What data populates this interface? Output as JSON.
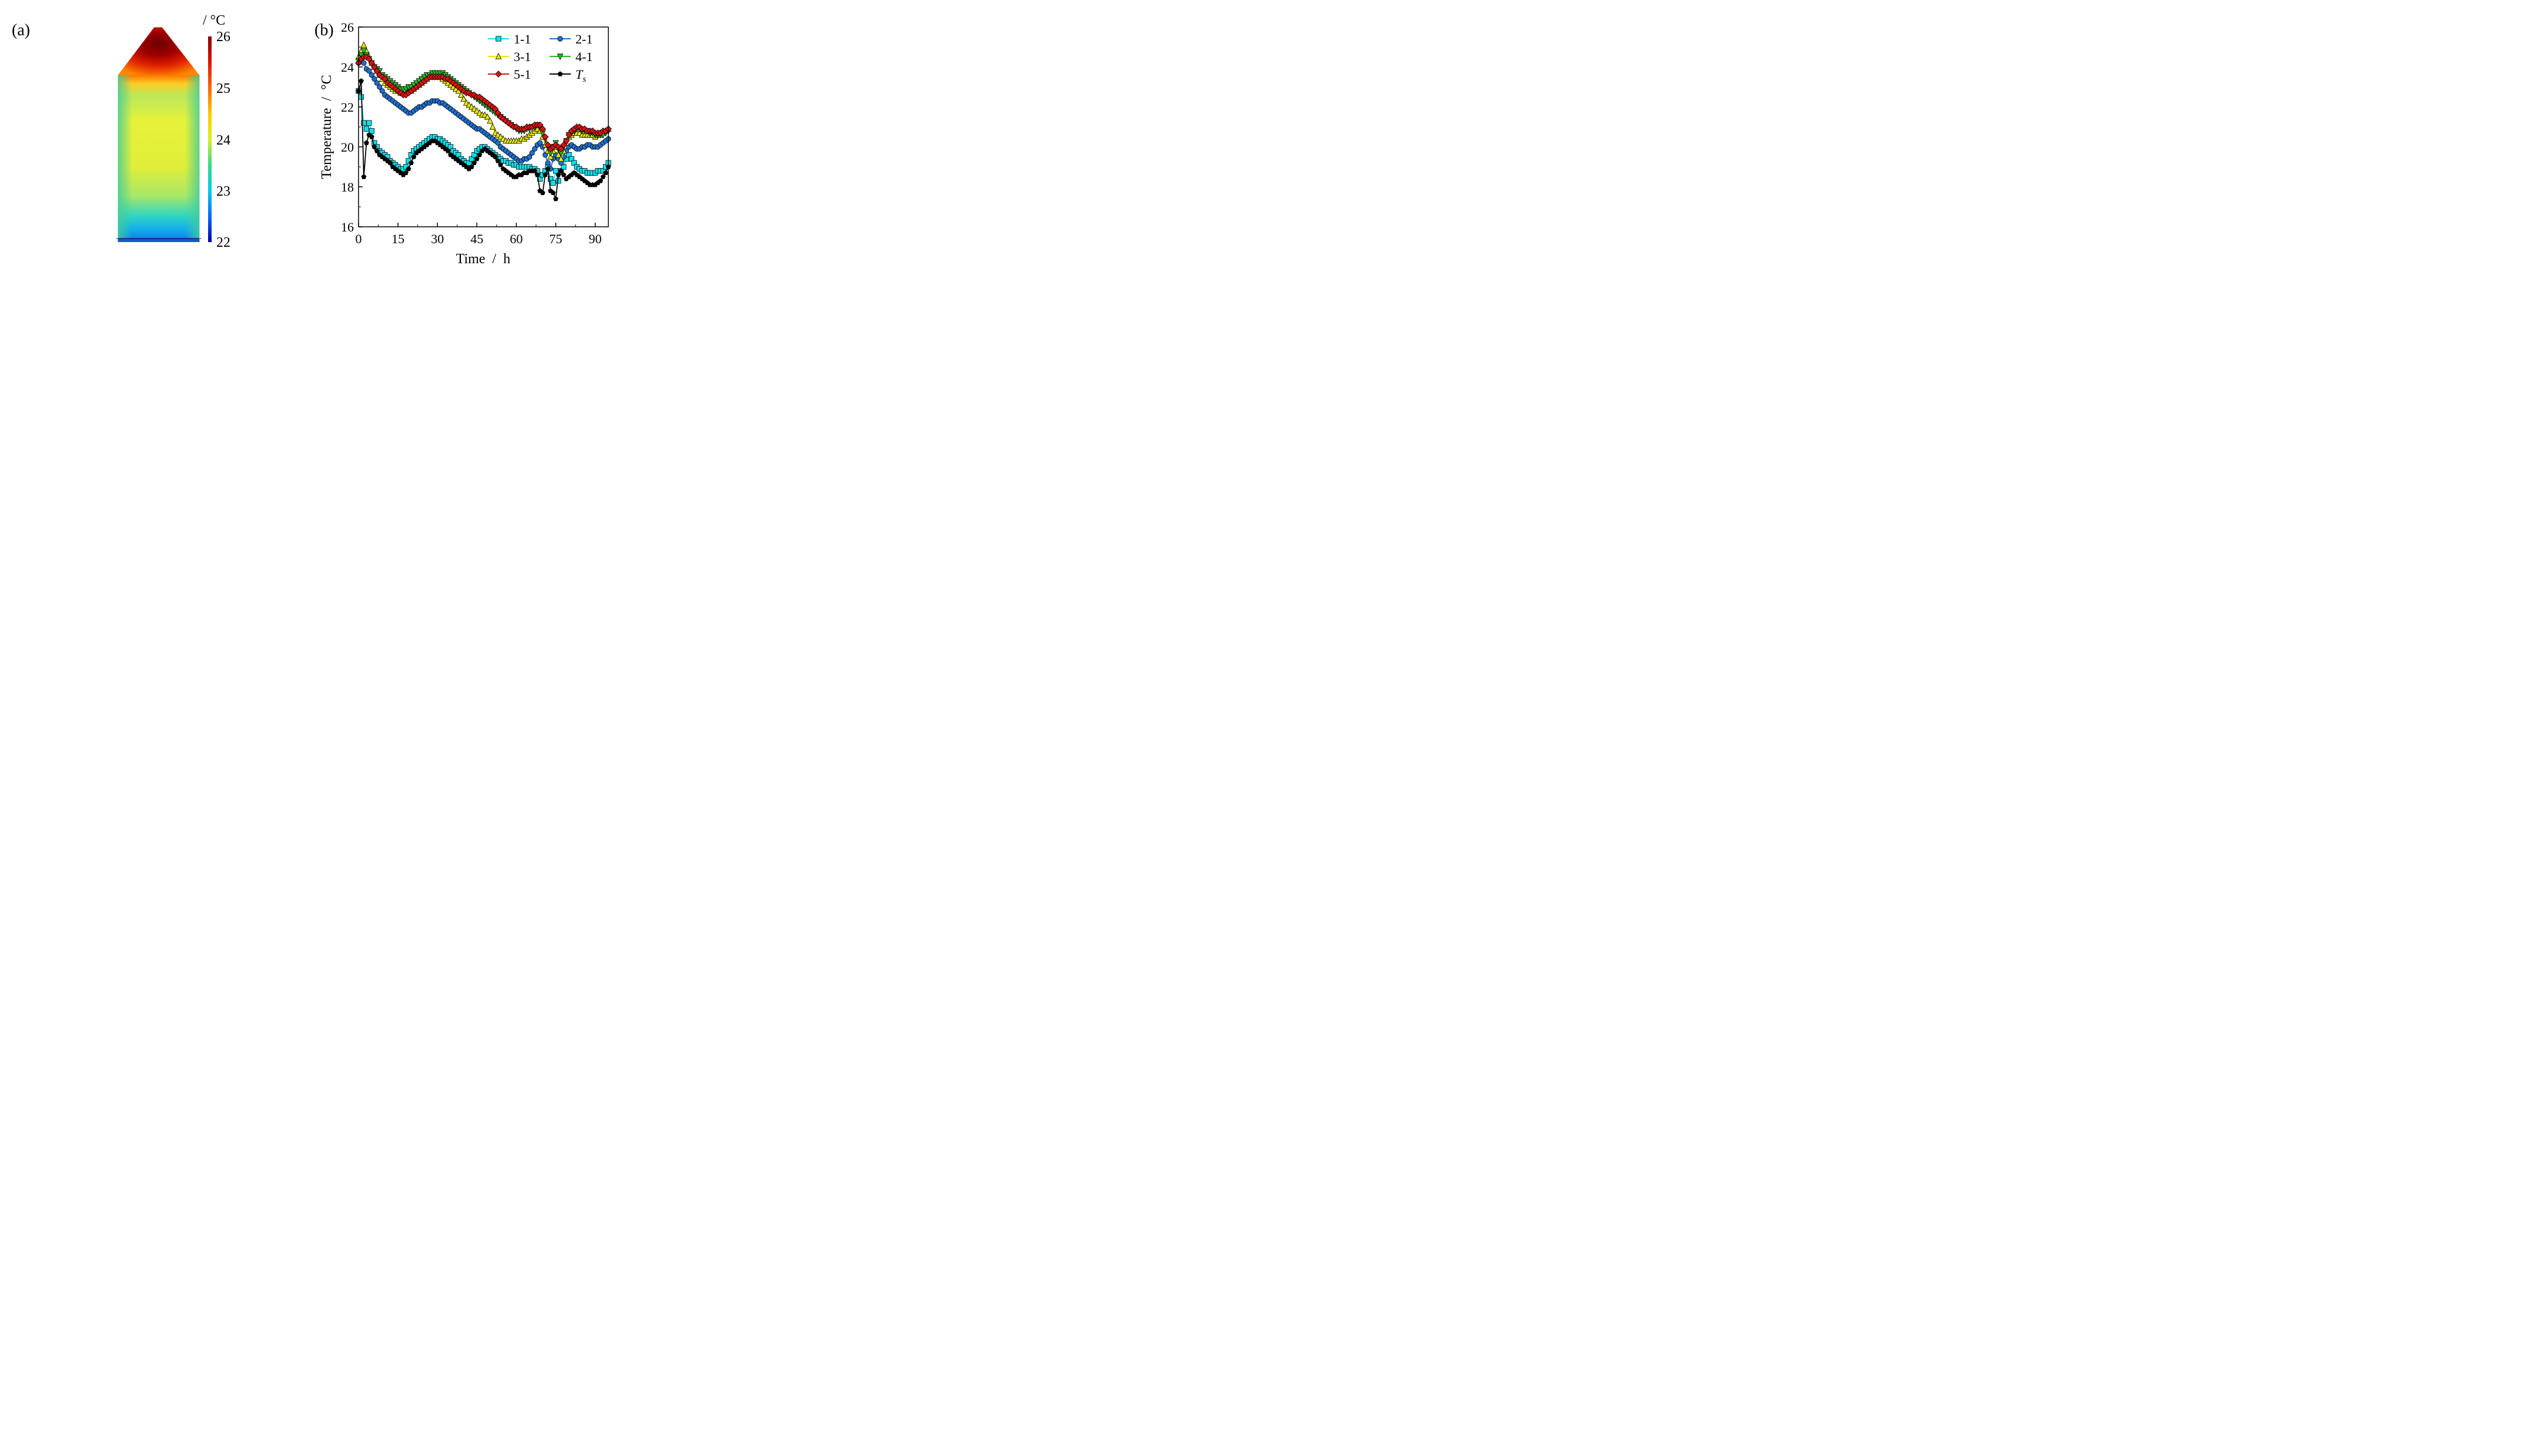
{
  "figure": {
    "panel_a_label": "(a)",
    "panel_b_label": "(b)"
  },
  "colorbar": {
    "unit": "/ °C",
    "ticks": [
      "26",
      "25",
      "24",
      "23",
      "22"
    ],
    "range": [
      22,
      26
    ],
    "colors": [
      "#0000aa",
      "#0066ff",
      "#00ccee",
      "#33dd88",
      "#ddee22",
      "#ffcc00",
      "#ff6600",
      "#dd1100",
      "#880000"
    ]
  },
  "contour": {
    "roof_color": "#8b0000",
    "body_top_color": "#ff7700",
    "body_mid_color": "#e6f23a",
    "body_low_color": "#55dd88",
    "body_bottom_color": "#1a8cff"
  },
  "chart_data": {
    "type": "line",
    "title": "",
    "xlabel": "Time  /  h",
    "ylabel": "Temperature  /  °C",
    "xlim": [
      0,
      95
    ],
    "ylim": [
      16,
      26
    ],
    "xticks": [
      "0",
      "15",
      "30",
      "45",
      "60",
      "75",
      "90"
    ],
    "yticks": [
      "16",
      "18",
      "20",
      "22",
      "24",
      "26"
    ],
    "legend_position": "top-right",
    "x": [
      0,
      1,
      2,
      3,
      4,
      5,
      6,
      7,
      8,
      9,
      10,
      11,
      12,
      13,
      14,
      15,
      16,
      17,
      18,
      19,
      20,
      21,
      22,
      23,
      24,
      25,
      26,
      27,
      28,
      29,
      30,
      31,
      32,
      33,
      34,
      35,
      36,
      37,
      38,
      39,
      40,
      41,
      42,
      43,
      44,
      45,
      46,
      47,
      48,
      49,
      50,
      51,
      52,
      53,
      54,
      55,
      56,
      57,
      58,
      59,
      60,
      61,
      62,
      63,
      64,
      65,
      66,
      67,
      68,
      69,
      70,
      71,
      72,
      73,
      74,
      75,
      76,
      77,
      78,
      79,
      80,
      81,
      82,
      83,
      84,
      85,
      86,
      87,
      88,
      89,
      90,
      91,
      92,
      93,
      94,
      95
    ],
    "series": [
      {
        "name": "1-1",
        "color": "#00e5ee",
        "marker": "square",
        "values": [
          22.8,
          22.5,
          21.2,
          20.9,
          21.2,
          20.8,
          20.2,
          20.0,
          19.8,
          19.7,
          19.6,
          19.5,
          19.3,
          19.2,
          19.1,
          19.0,
          18.9,
          18.9,
          19.0,
          19.3,
          19.6,
          19.8,
          19.9,
          20.0,
          20.1,
          20.2,
          20.3,
          20.4,
          20.5,
          20.5,
          20.4,
          20.4,
          20.3,
          20.2,
          20.1,
          20.0,
          19.8,
          19.7,
          19.6,
          19.4,
          19.3,
          19.2,
          19.2,
          19.4,
          19.6,
          19.8,
          19.9,
          20.0,
          20.0,
          19.9,
          19.8,
          19.7,
          19.6,
          19.5,
          19.4,
          19.3,
          19.3,
          19.2,
          19.2,
          19.1,
          19.1,
          19.0,
          19.0,
          19.0,
          19.0,
          19.0,
          18.9,
          18.9,
          18.8,
          18.4,
          18.6,
          18.8,
          19.0,
          18.4,
          18.2,
          18.8,
          18.3,
          18.8,
          19.0,
          19.4,
          19.6,
          19.4,
          19.2,
          19.0,
          18.9,
          18.8,
          18.8,
          18.7,
          18.7,
          18.7,
          18.7,
          18.8,
          18.8,
          18.8,
          19.0,
          19.2
        ]
      },
      {
        "name": "2-1",
        "color": "#1e6fd0",
        "marker": "circle",
        "values": [
          24.2,
          24.3,
          24.2,
          23.9,
          23.8,
          23.6,
          23.4,
          23.2,
          23.0,
          22.8,
          22.6,
          22.5,
          22.4,
          22.3,
          22.2,
          22.1,
          22.0,
          21.9,
          21.8,
          21.7,
          21.7,
          21.8,
          21.9,
          22.0,
          22.0,
          22.1,
          22.2,
          22.2,
          22.3,
          22.3,
          22.3,
          22.2,
          22.2,
          22.1,
          22.0,
          21.9,
          21.8,
          21.7,
          21.6,
          21.5,
          21.4,
          21.3,
          21.2,
          21.1,
          21.0,
          20.9,
          20.9,
          20.8,
          20.7,
          20.6,
          20.5,
          20.4,
          20.3,
          20.2,
          20.0,
          19.9,
          19.8,
          19.7,
          19.6,
          19.5,
          19.4,
          19.3,
          19.3,
          19.4,
          19.4,
          19.5,
          19.7,
          19.9,
          20.1,
          20.2,
          20.0,
          19.6,
          19.2,
          18.9,
          19.4,
          19.6,
          19.4,
          19.2,
          19.5,
          19.8,
          20.0,
          20.1,
          20.0,
          19.9,
          19.9,
          20.0,
          20.0,
          20.1,
          20.1,
          20.0,
          20.0,
          20.0,
          20.1,
          20.2,
          20.3,
          20.4
        ]
      },
      {
        "name": "3-1",
        "color": "#e8e800",
        "marker": "triangle-up",
        "values": [
          24.5,
          24.8,
          25.1,
          24.8,
          24.5,
          24.2,
          24.0,
          23.8,
          23.6,
          23.4,
          23.2,
          23.1,
          23.0,
          22.9,
          22.8,
          22.8,
          22.7,
          22.7,
          22.7,
          22.8,
          22.8,
          22.9,
          23.0,
          23.1,
          23.2,
          23.3,
          23.4,
          23.5,
          23.5,
          23.5,
          23.5,
          23.5,
          23.4,
          23.3,
          23.2,
          23.1,
          23.0,
          22.9,
          22.8,
          22.6,
          22.4,
          22.2,
          22.1,
          22.0,
          21.9,
          21.8,
          21.7,
          21.6,
          21.6,
          21.5,
          21.3,
          21.0,
          20.7,
          20.6,
          20.5,
          20.4,
          20.3,
          20.3,
          20.3,
          20.3,
          20.3,
          20.3,
          20.4,
          20.4,
          20.5,
          20.6,
          20.7,
          20.8,
          20.9,
          20.8,
          20.5,
          20.1,
          19.8,
          19.5,
          19.8,
          20.0,
          19.6,
          19.4,
          19.8,
          20.2,
          20.5,
          20.6,
          20.7,
          20.7,
          20.7,
          20.6,
          20.6,
          20.6,
          20.6,
          20.6,
          20.5,
          20.6,
          20.6,
          20.7,
          20.8,
          20.9
        ]
      },
      {
        "name": "4-1",
        "color": "#22bb22",
        "marker": "triangle-down",
        "values": [
          24.3,
          24.6,
          24.8,
          24.6,
          24.4,
          24.2,
          24.0,
          23.9,
          23.8,
          23.6,
          23.5,
          23.4,
          23.3,
          23.2,
          23.1,
          23.0,
          22.9,
          22.9,
          22.9,
          23.0,
          23.0,
          23.1,
          23.2,
          23.3,
          23.4,
          23.5,
          23.6,
          23.6,
          23.7,
          23.7,
          23.7,
          23.7,
          23.7,
          23.6,
          23.5,
          23.4,
          23.3,
          23.2,
          23.1,
          23.0,
          22.9,
          22.8,
          22.7,
          22.6,
          22.5,
          22.4,
          22.3,
          22.2,
          22.1,
          22.0,
          21.9,
          21.8,
          21.7,
          21.6,
          21.5,
          21.4,
          21.3,
          21.2,
          21.1,
          21.0,
          20.9,
          20.8,
          20.8,
          20.8,
          20.9,
          20.9,
          21.0,
          21.0,
          21.1,
          21.0,
          20.7,
          20.4,
          20.0,
          19.7,
          20.0,
          20.2,
          19.9,
          19.7,
          20.0,
          20.3,
          20.6,
          20.7,
          20.8,
          20.9,
          20.9,
          20.8,
          20.8,
          20.8,
          20.7,
          20.7,
          20.6,
          20.6,
          20.6,
          20.6,
          20.7,
          20.8
        ]
      },
      {
        "name": "5-1",
        "color": "#dd1111",
        "marker": "diamond",
        "values": [
          24.2,
          24.4,
          24.5,
          24.5,
          24.4,
          24.2,
          24.0,
          23.8,
          23.6,
          23.5,
          23.4,
          23.2,
          23.1,
          23.0,
          22.9,
          22.8,
          22.7,
          22.6,
          22.6,
          22.7,
          22.8,
          22.9,
          23.0,
          23.1,
          23.2,
          23.3,
          23.4,
          23.5,
          23.5,
          23.5,
          23.5,
          23.5,
          23.5,
          23.4,
          23.4,
          23.3,
          23.2,
          23.1,
          23.0,
          22.9,
          22.8,
          22.7,
          22.7,
          22.6,
          22.6,
          22.5,
          22.5,
          22.4,
          22.3,
          22.2,
          22.1,
          22.0,
          21.9,
          21.7,
          21.5,
          21.4,
          21.3,
          21.2,
          21.1,
          21.0,
          21.0,
          20.9,
          20.9,
          20.9,
          21.0,
          21.0,
          21.0,
          21.1,
          21.1,
          21.1,
          20.9,
          20.5,
          20.1,
          19.9,
          20.0,
          20.1,
          20.0,
          19.9,
          20.1,
          20.3,
          20.6,
          20.8,
          20.9,
          21.0,
          21.0,
          20.9,
          20.9,
          20.8,
          20.8,
          20.8,
          20.7,
          20.7,
          20.7,
          20.8,
          20.8,
          20.9
        ]
      },
      {
        "name": "T_s",
        "color": "#000000",
        "marker": "pentagon",
        "values": [
          22.8,
          23.3,
          18.5,
          20.2,
          20.6,
          20.5,
          20.0,
          19.8,
          19.6,
          19.5,
          19.4,
          19.3,
          19.2,
          19.0,
          18.9,
          18.8,
          18.7,
          18.6,
          18.7,
          18.9,
          19.2,
          19.5,
          19.7,
          19.8,
          19.9,
          20.0,
          20.1,
          20.2,
          20.3,
          20.3,
          20.2,
          20.1,
          20.0,
          19.9,
          19.8,
          19.6,
          19.5,
          19.4,
          19.3,
          19.2,
          19.1,
          19.0,
          18.9,
          19.0,
          19.2,
          19.4,
          19.6,
          19.8,
          19.9,
          19.8,
          19.7,
          19.6,
          19.5,
          19.3,
          19.1,
          18.9,
          18.8,
          18.7,
          18.6,
          18.5,
          18.5,
          18.6,
          18.6,
          18.7,
          18.7,
          18.8,
          18.8,
          18.8,
          18.6,
          17.8,
          17.7,
          18.6,
          18.9,
          17.8,
          17.7,
          17.4,
          18.6,
          18.8,
          18.6,
          18.4,
          18.5,
          18.6,
          18.7,
          18.6,
          18.5,
          18.4,
          18.3,
          18.2,
          18.1,
          18.1,
          18.1,
          18.2,
          18.3,
          18.5,
          18.7,
          19.0
        ]
      }
    ],
    "legend": [
      "1-1",
      "2-1",
      "3-1",
      "4-1",
      "5-1",
      "T_s"
    ],
    "legend_labels": [
      "1-1",
      "2-1",
      "3-1",
      "4-1",
      "5-1",
      "T"
    ],
    "legend_subscript": "s"
  }
}
